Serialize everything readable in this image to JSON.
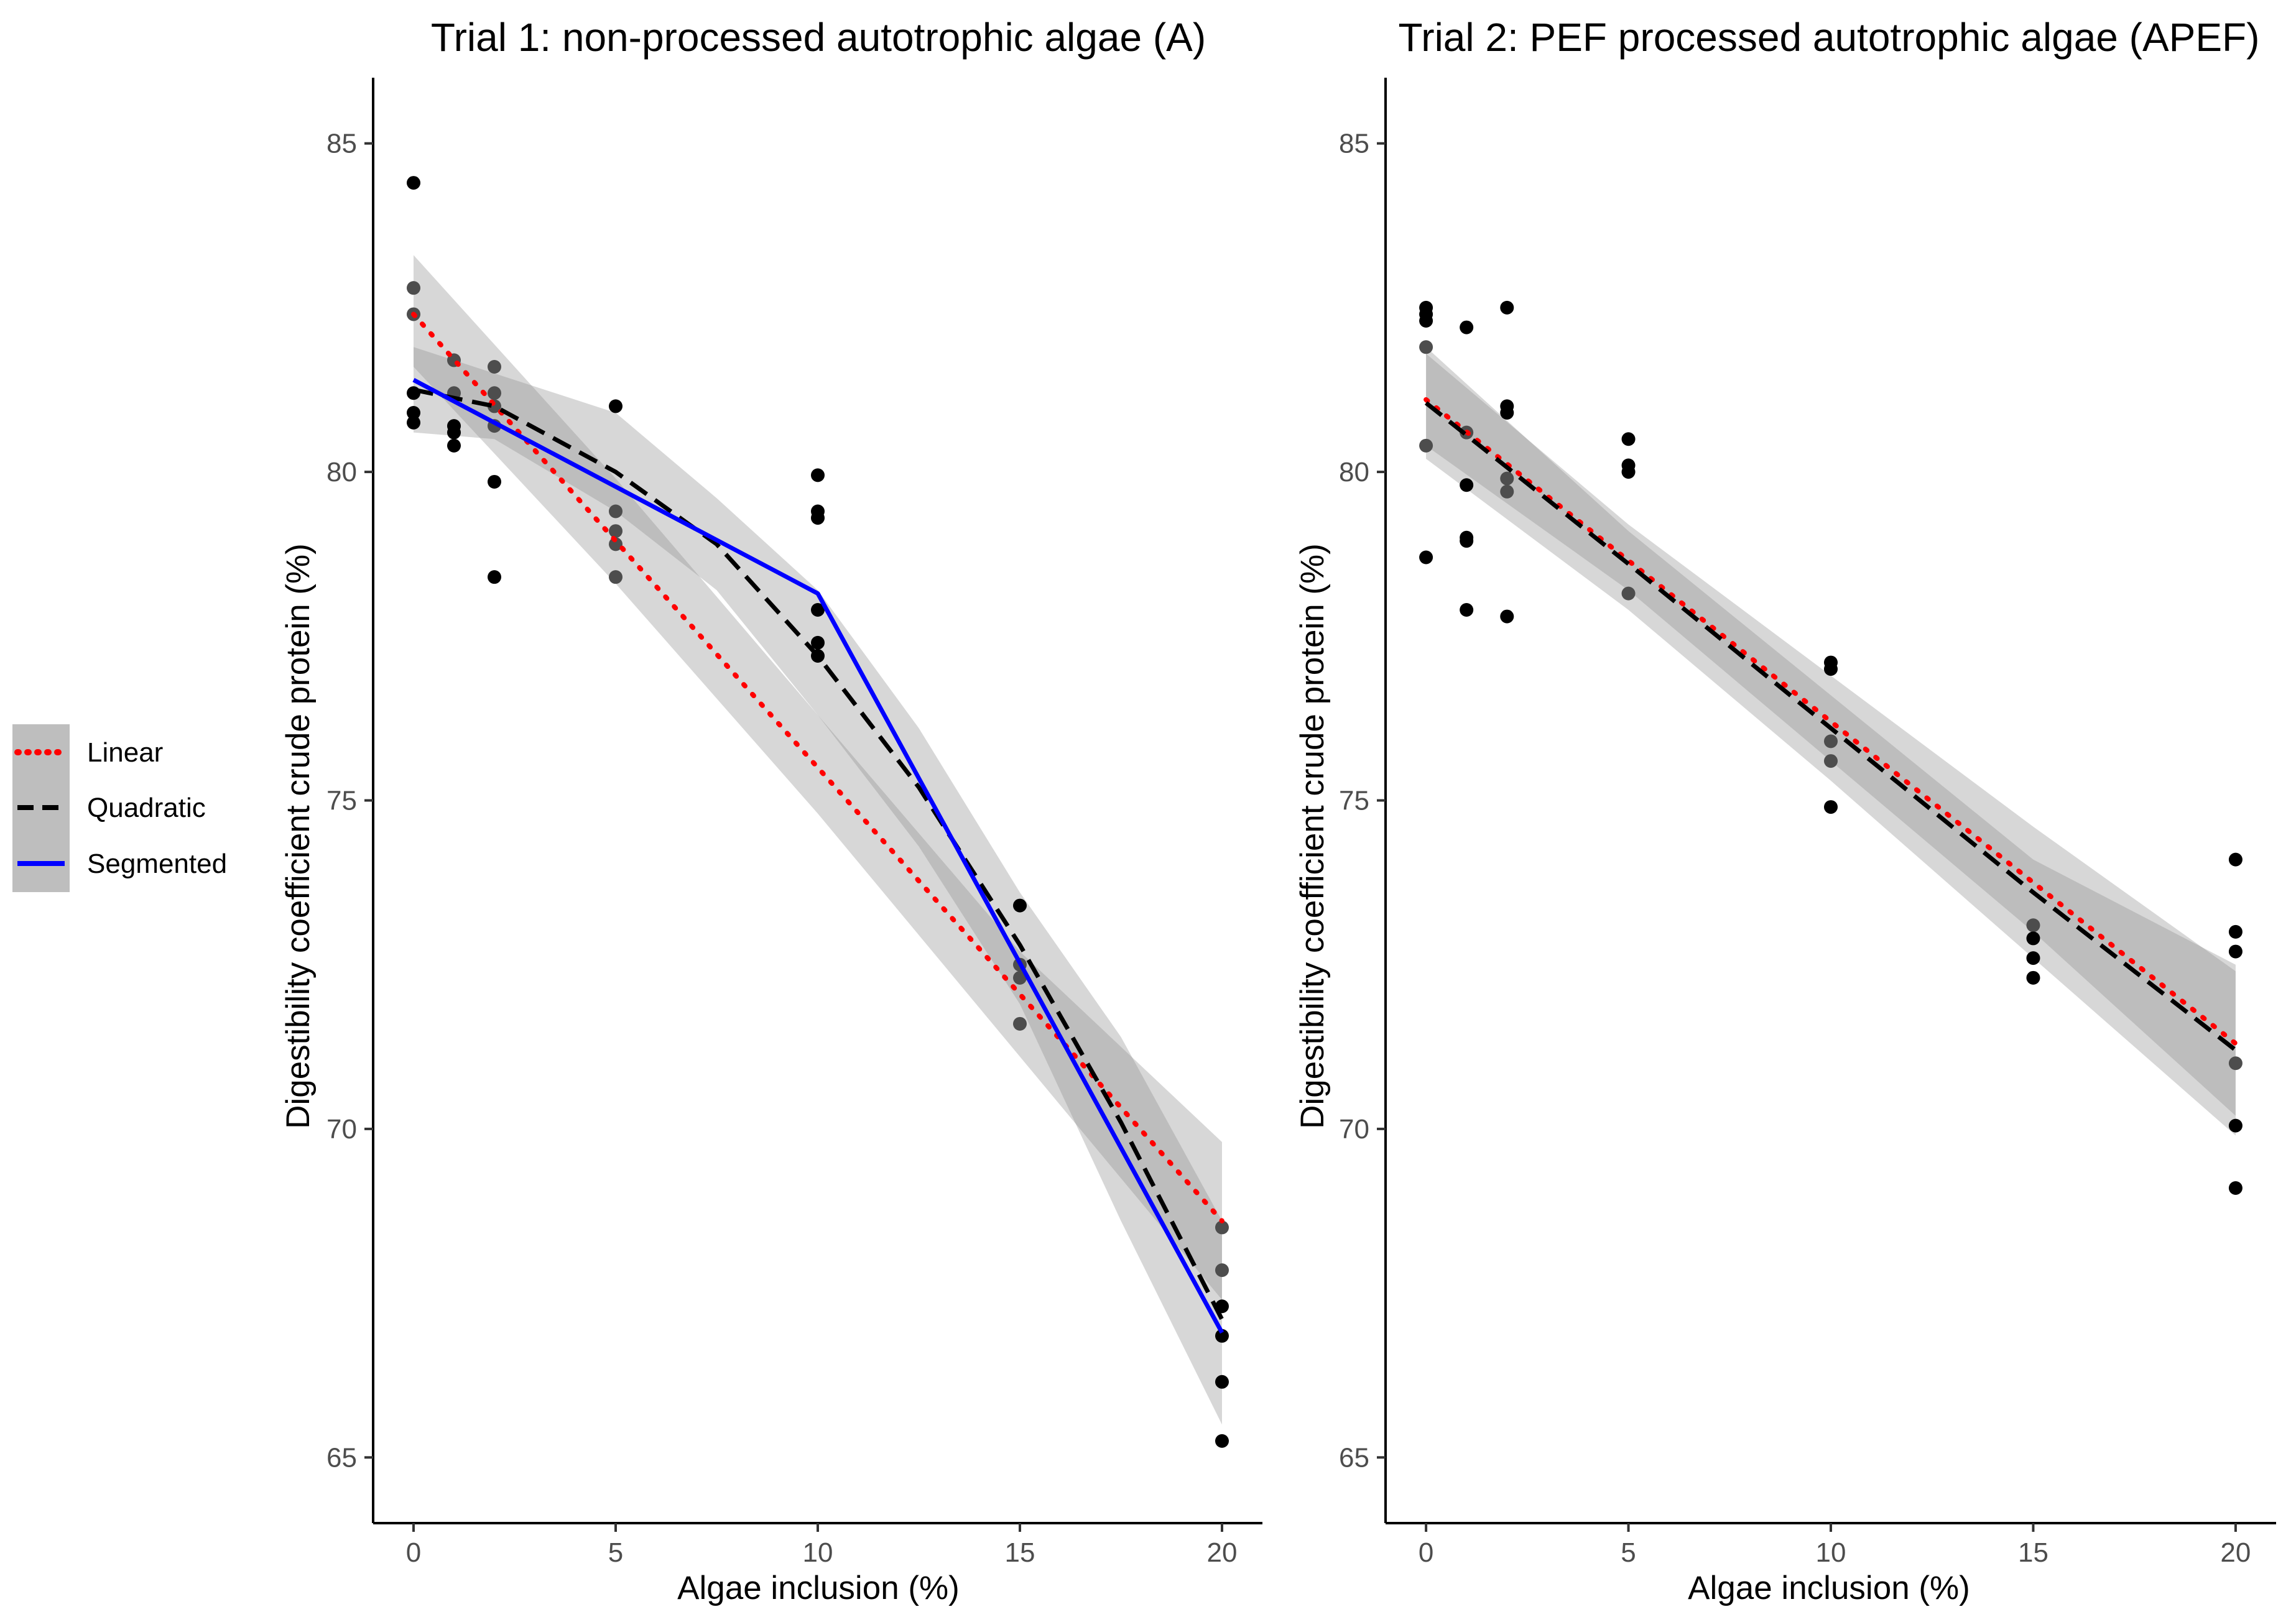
{
  "legend": {
    "items": [
      {
        "label": "Linear",
        "color": "#ff0000",
        "dash": "dotted"
      },
      {
        "label": "Quadratic",
        "color": "#000000",
        "dash": "dashed"
      },
      {
        "label": "Segmented",
        "color": "#0000ff",
        "dash": "solid"
      }
    ],
    "position": "left"
  },
  "chart_data": [
    {
      "type": "scatter",
      "title": "Trial 1: non-processed autotrophic algae (A)",
      "xlabel": "Algae inclusion (%)",
      "ylabel": "Digestibility coefficient crude protein (%)",
      "xlim": [
        -1,
        21
      ],
      "ylim": [
        64,
        86
      ],
      "xticks": [
        0,
        5,
        10,
        15,
        20
      ],
      "yticks": [
        65,
        70,
        75,
        80,
        85
      ],
      "grid": false,
      "points": [
        [
          0,
          84.4
        ],
        [
          0,
          82.8
        ],
        [
          0,
          82.4
        ],
        [
          0,
          81.2
        ],
        [
          0,
          80.9
        ],
        [
          0,
          80.75
        ],
        [
          1,
          81.7
        ],
        [
          1,
          81.2
        ],
        [
          1,
          80.7
        ],
        [
          1,
          80.6
        ],
        [
          1,
          80.4
        ],
        [
          2,
          81.6
        ],
        [
          2,
          81.2
        ],
        [
          2,
          81.0
        ],
        [
          2,
          80.7
        ],
        [
          2,
          79.85
        ],
        [
          2,
          78.4
        ],
        [
          5,
          81.0
        ],
        [
          5,
          79.4
        ],
        [
          5,
          79.1
        ],
        [
          5,
          78.9
        ],
        [
          5,
          78.4
        ],
        [
          10,
          79.95
        ],
        [
          10,
          79.4
        ],
        [
          10,
          79.3
        ],
        [
          10,
          77.9
        ],
        [
          10,
          77.4
        ],
        [
          10,
          77.2
        ],
        [
          15,
          73.4
        ],
        [
          15,
          72.5
        ],
        [
          15,
          72.3
        ],
        [
          15,
          71.6
        ],
        [
          20,
          68.5
        ],
        [
          20,
          67.85
        ],
        [
          20,
          67.3
        ],
        [
          20,
          66.85
        ],
        [
          20,
          66.15
        ],
        [
          20,
          65.25
        ]
      ],
      "series": [
        {
          "name": "Linear",
          "x": [
            0,
            20
          ],
          "y": [
            82.4,
            68.6
          ],
          "ci_x": [
            0,
            5,
            10,
            15,
            20
          ],
          "ci_low": [
            81.6,
            78.3,
            74.8,
            71.1,
            67.4
          ],
          "ci_high": [
            83.3,
            79.9,
            76.3,
            72.7,
            69.8
          ]
        },
        {
          "name": "Quadratic",
          "x": [
            0,
            2,
            5,
            7.5,
            10,
            12.5,
            15,
            17.5,
            20
          ],
          "y": [
            81.25,
            81.0,
            80.0,
            78.9,
            77.2,
            75.2,
            72.8,
            70.1,
            67.1
          ],
          "ci_low": [
            80.6,
            80.5,
            79.4,
            78.2,
            76.3,
            74.3,
            71.9,
            68.6,
            65.5
          ],
          "ci_high": [
            81.9,
            81.5,
            80.9,
            79.6,
            78.2,
            76.1,
            73.6,
            71.4,
            68.6
          ]
        },
        {
          "name": "Segmented",
          "x": [
            0,
            10,
            20
          ],
          "y": [
            81.4,
            78.15,
            66.9
          ]
        }
      ]
    },
    {
      "type": "scatter",
      "title": "Trial 2: PEF processed autotrophic algae (APEF)",
      "xlabel": "Algae inclusion (%)",
      "ylabel": "Digestibility coefficient crude protein (%)",
      "xlim": [
        -1,
        21
      ],
      "ylim": [
        64,
        86
      ],
      "xticks": [
        0,
        5,
        10,
        15,
        20
      ],
      "yticks": [
        65,
        70,
        75,
        80,
        85
      ],
      "grid": false,
      "points": [
        [
          0,
          82.5
        ],
        [
          0,
          82.4
        ],
        [
          0,
          82.3
        ],
        [
          0,
          81.9
        ],
        [
          0,
          80.4
        ],
        [
          0,
          78.7
        ],
        [
          1,
          82.2
        ],
        [
          1,
          80.6
        ],
        [
          1,
          79.8
        ],
        [
          1,
          79.0
        ],
        [
          1,
          78.95
        ],
        [
          1,
          77.9
        ],
        [
          2,
          82.5
        ],
        [
          2,
          81.0
        ],
        [
          2,
          80.9
        ],
        [
          2,
          79.9
        ],
        [
          2,
          79.7
        ],
        [
          2,
          77.8
        ],
        [
          5,
          80.5
        ],
        [
          5,
          80.1
        ],
        [
          5,
          80.0
        ],
        [
          5,
          78.15
        ],
        [
          10,
          77.1
        ],
        [
          10,
          77.0
        ],
        [
          10,
          75.9
        ],
        [
          10,
          75.6
        ],
        [
          10,
          74.9
        ],
        [
          15,
          73.1
        ],
        [
          15,
          72.9
        ],
        [
          15,
          72.6
        ],
        [
          15,
          72.3
        ],
        [
          20,
          74.1
        ],
        [
          20,
          73.0
        ],
        [
          20,
          72.7
        ],
        [
          20,
          71.0
        ],
        [
          20,
          70.05
        ],
        [
          20,
          69.1
        ]
      ],
      "series": [
        {
          "name": "Linear",
          "x": [
            0,
            20
          ],
          "y": [
            81.1,
            71.3
          ],
          "ci_x": [
            0,
            5,
            10,
            15,
            20
          ],
          "ci_low": [
            80.4,
            78.2,
            75.6,
            73.0,
            70.2
          ],
          "ci_high": [
            81.9,
            79.1,
            76.6,
            74.1,
            72.5
          ]
        },
        {
          "name": "Quadratic",
          "x": [
            0,
            5,
            10,
            15,
            20
          ],
          "y": [
            81.05,
            78.6,
            76.1,
            73.6,
            71.2
          ],
          "ci_low": [
            80.2,
            77.9,
            75.3,
            72.6,
            69.9
          ],
          "ci_high": [
            81.8,
            79.2,
            76.9,
            74.6,
            72.4
          ]
        }
      ]
    }
  ]
}
